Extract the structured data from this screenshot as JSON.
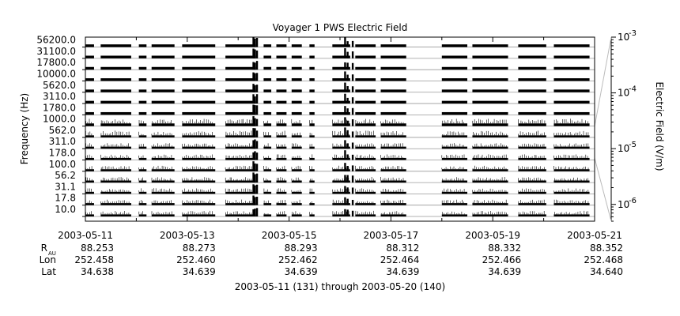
{
  "chart_data": {
    "type": "line",
    "title": "Voyager 1 PWS Electric Field",
    "ylabel": "Frequency (Hz)",
    "y2label": "Electric Field (V/m)",
    "channels_hz": [
      "10.0",
      "17.8",
      "31.1",
      "56.2",
      "100.0",
      "178.0",
      "311.0",
      "562.0",
      "1000.0",
      "1780.0",
      "3110.0",
      "5620.0",
      "10000.0",
      "17800.0",
      "31100.0",
      "56200.0"
    ],
    "x_ticks": [
      "2003-05-11",
      "2003-05-13",
      "2003-05-15",
      "2003-05-17",
      "2003-05-19",
      "2003-05-21"
    ],
    "xlim": [
      "2003-05-11",
      "2003-05-21"
    ],
    "y2_ticks": [
      {
        "mantissa": "10",
        "exp": "-3"
      },
      {
        "mantissa": "10",
        "exp": "-4"
      },
      {
        "mantissa": "10",
        "exp": "-5"
      },
      {
        "mantissa": "10",
        "exp": "-6"
      }
    ],
    "y2lim": [
      5e-07,
      0.001
    ],
    "y2_scale": "log",
    "data_segments_days": [
      [
        0,
        0.17
      ],
      [
        0.3,
        0.9
      ],
      [
        1.05,
        1.2
      ],
      [
        1.3,
        1.75
      ],
      [
        1.9,
        2.55
      ],
      [
        2.75,
        3.35
      ],
      [
        3.5,
        3.65
      ],
      [
        3.75,
        3.95
      ],
      [
        4.05,
        4.25
      ],
      [
        4.4,
        4.5
      ],
      [
        4.85,
        5.2
      ],
      [
        5.3,
        5.7
      ],
      [
        5.8,
        6.3
      ],
      [
        7.0,
        7.5
      ],
      [
        7.6,
        8.3
      ],
      [
        8.5,
        9.05
      ],
      [
        9.2,
        9.9
      ]
    ],
    "bursts_days": [
      {
        "day": 3.3,
        "intensity": 1.0
      },
      {
        "day": 3.33,
        "intensity": 0.95
      },
      {
        "day": 3.37,
        "intensity": 0.9
      },
      {
        "day": 5.1,
        "intensity": 1.0
      },
      {
        "day": 5.15,
        "intensity": 0.6
      },
      {
        "day": 5.25,
        "intensity": 0.5
      }
    ],
    "ephemeris": {
      "rows": [
        {
          "label": "R",
          "subscript": "AU",
          "values": [
            "88.253",
            "88.273",
            "88.293",
            "88.312",
            "88.332",
            "88.352"
          ]
        },
        {
          "label": "Lon",
          "subscript": "",
          "values": [
            "252.458",
            "252.460",
            "252.462",
            "252.464",
            "252.466",
            "252.468"
          ]
        },
        {
          "label": "Lat",
          "subscript": "",
          "values": [
            "34.638",
            "34.639",
            "34.639",
            "34.639",
            "34.639",
            "34.640"
          ]
        }
      ]
    },
    "footer": "2003-05-11 (131) through 2003-05-20 (140)"
  }
}
